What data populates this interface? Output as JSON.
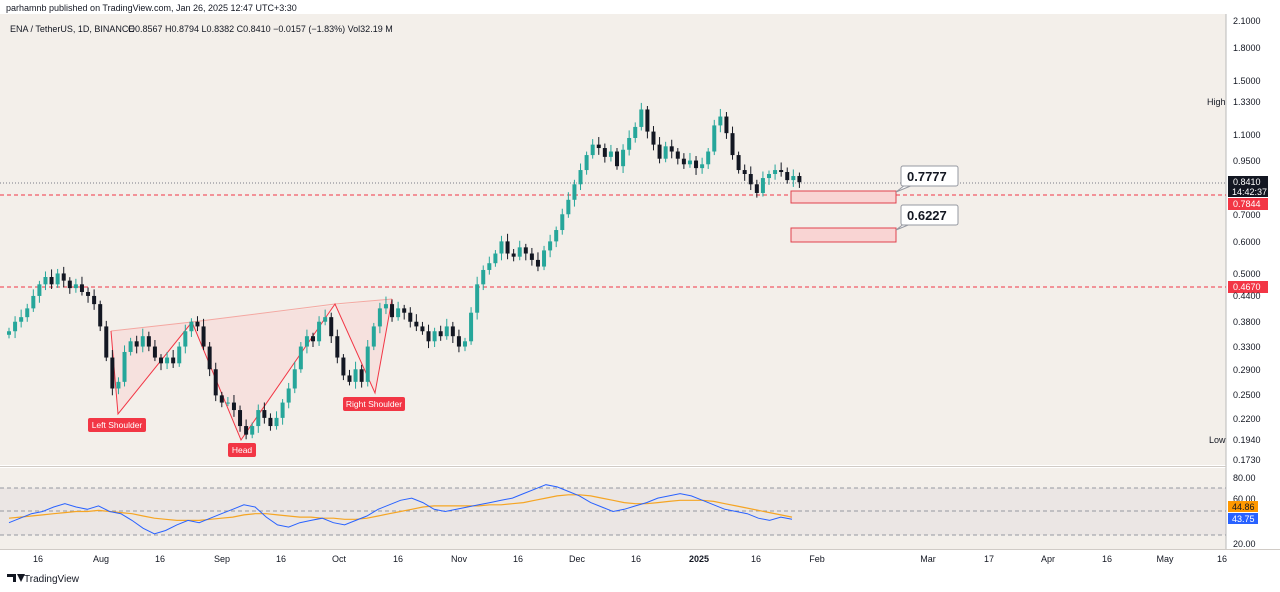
{
  "header": {
    "published": "parhamnb published on TradingView.com, Jan 26, 2025 12:47 UTC+3:30",
    "symbol": "ENA / TetherUS, 1D, BINANCE",
    "ohlc": "O0.8567  H0.8794  L0.8382  C0.8410  −0.0157 (−1.83%)  Vol32.19 M"
  },
  "footer": {
    "brand": "TradingView"
  },
  "colors": {
    "up": "#26a69a",
    "down": "#131722",
    "pattern_line": "#f23645",
    "pattern_fill": "#f7dcd9",
    "zone_fill": "#f9d4d3",
    "zone_stroke": "#e0424d",
    "rsi_line": "#2962ff",
    "rsi_ma": "#f5a524",
    "badge_red": "#f23645",
    "badge_dark": "#131722",
    "badge_orange": "#ff9800",
    "badge_blue": "#2962ff",
    "plot_bg": "#f3efea"
  },
  "chart_data": {
    "type": "candlestick",
    "price_axis": {
      "scale": "log",
      "ticks": [
        "2.1000",
        "1.8000",
        "1.5000",
        "1.3300",
        "1.1000",
        "0.9500",
        "0.8410",
        "0.7844",
        "0.7000",
        "0.6000",
        "0.5000",
        "0.4670",
        "0.4400",
        "0.3800",
        "0.3300",
        "0.2900",
        "0.2500",
        "0.2200",
        "0.1940",
        "0.1730"
      ],
      "range": [
        0.17,
        2.15
      ]
    },
    "time_axis": {
      "ticks": [
        "16",
        "Aug",
        "16",
        "Sep",
        "16",
        "Oct",
        "16",
        "Nov",
        "16",
        "Dec",
        "16",
        "2025",
        "16",
        "Feb",
        "Mar",
        "17",
        "Apr",
        "16",
        "May",
        "16"
      ]
    },
    "markers": {
      "high": {
        "label": "High",
        "value": "1.3300"
      },
      "low": {
        "label": "Low",
        "value": "0.1940"
      },
      "last_price": "0.8410",
      "countdown": "14:42:37",
      "line_a": "0.7844",
      "line_b": "0.4670"
    },
    "horizontal_lines": [
      0.7844,
      0.467
    ],
    "pattern": {
      "name": "Inverse head and shoulders",
      "labels": [
        "Left Shoulder",
        "Head",
        "Right Shoulder"
      ]
    },
    "target_zones": [
      {
        "label": "0.7777",
        "low": 0.765,
        "high": 0.79
      },
      {
        "label": "0.6227",
        "low": 0.61,
        "high": 0.637
      }
    ],
    "close_series": [
      0.36,
      0.38,
      0.39,
      0.41,
      0.44,
      0.47,
      0.49,
      0.47,
      0.5,
      0.48,
      0.46,
      0.47,
      0.45,
      0.44,
      0.42,
      0.37,
      0.31,
      0.26,
      0.27,
      0.32,
      0.34,
      0.33,
      0.35,
      0.33,
      0.31,
      0.3,
      0.31,
      0.3,
      0.33,
      0.36,
      0.38,
      0.37,
      0.33,
      0.29,
      0.25,
      0.24,
      0.24,
      0.23,
      0.21,
      0.2,
      0.21,
      0.23,
      0.22,
      0.21,
      0.22,
      0.24,
      0.26,
      0.29,
      0.33,
      0.35,
      0.34,
      0.38,
      0.39,
      0.35,
      0.31,
      0.28,
      0.27,
      0.29,
      0.27,
      0.33,
      0.37,
      0.41,
      0.42,
      0.39,
      0.41,
      0.4,
      0.38,
      0.37,
      0.36,
      0.34,
      0.36,
      0.35,
      0.37,
      0.35,
      0.33,
      0.34,
      0.4,
      0.47,
      0.51,
      0.53,
      0.56,
      0.6,
      0.56,
      0.55,
      0.58,
      0.56,
      0.54,
      0.52,
      0.57,
      0.6,
      0.64,
      0.7,
      0.76,
      0.83,
      0.9,
      0.98,
      1.04,
      1.02,
      0.97,
      1.0,
      0.92,
      1.01,
      1.08,
      1.15,
      1.27,
      1.12,
      1.04,
      0.96,
      1.03,
      1.0,
      0.96,
      0.93,
      0.95,
      0.91,
      0.93,
      1.0,
      1.16,
      1.22,
      1.11,
      0.98,
      0.9,
      0.88,
      0.83,
      0.79,
      0.86,
      0.88,
      0.9,
      0.89,
      0.85,
      0.87,
      0.84
    ],
    "rsi": {
      "levels": [
        70,
        50,
        30
      ],
      "ticks": [
        "80.00",
        "60.00",
        "20.00"
      ],
      "last": "43.75",
      "ma_last": "44.86",
      "series": [
        40,
        44,
        48,
        50,
        54,
        57,
        54,
        52,
        55,
        50,
        48,
        42,
        35,
        30,
        33,
        38,
        42,
        40,
        44,
        48,
        52,
        56,
        54,
        45,
        38,
        36,
        40,
        42,
        44,
        40,
        38,
        42,
        46,
        52,
        56,
        60,
        62,
        58,
        52,
        50,
        52,
        54,
        56,
        58,
        60,
        62,
        66,
        70,
        74,
        72,
        68,
        64,
        58,
        54,
        50,
        52,
        55,
        58,
        62,
        64,
        66,
        64,
        60,
        56,
        52,
        50,
        48,
        44,
        42,
        45,
        43
      ],
      "ma_series": [
        44,
        45,
        46,
        47,
        48,
        49,
        50,
        50,
        51,
        50,
        49,
        48,
        46,
        44,
        43,
        42,
        42,
        42,
        43,
        44,
        45,
        47,
        48,
        48,
        47,
        46,
        45,
        45,
        44,
        44,
        43,
        43,
        44,
        46,
        48,
        50,
        52,
        54,
        55,
        55,
        55,
        55,
        55,
        56,
        56,
        57,
        58,
        60,
        62,
        64,
        65,
        65,
        64,
        62,
        60,
        58,
        57,
        57,
        58,
        59,
        60,
        60,
        60,
        59,
        57,
        55,
        53,
        51,
        49,
        47,
        45
      ]
    }
  }
}
